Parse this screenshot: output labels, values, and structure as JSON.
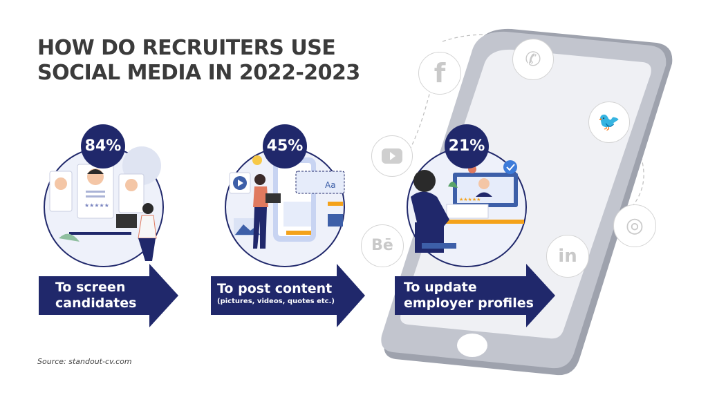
{
  "title": {
    "line1": "HOW DO RECRUITERS USE",
    "line2": "SOCIAL MEDIA IN 2022-2023"
  },
  "items": [
    {
      "percent": "84%",
      "value": 84,
      "label_line1": "To screen",
      "label_line2": "candidates",
      "sub": ""
    },
    {
      "percent": "45%",
      "value": 45,
      "label_line1": "To post content",
      "label_line2": "",
      "sub": "(pictures, videos, quotes etc.)"
    },
    {
      "percent": "21%",
      "value": 21,
      "label_line1": "To update",
      "label_line2": "employer profiles",
      "sub": ""
    }
  ],
  "social_icons": [
    "facebook-icon",
    "whatsapp-icon",
    "twitter-icon",
    "youtube-icon",
    "behance-icon",
    "linkedin-icon",
    "instagram-icon"
  ],
  "social_glyphs": {
    "facebook": "f",
    "behance": "Bē",
    "linkedin": "in",
    "twitter": "🐦",
    "whatsapp": "✆",
    "instagram": "◎"
  },
  "illustration_text": {
    "font_sample": "Aa",
    "stars": "★★★★★"
  },
  "source": "Source: standout-cv.com",
  "colors": {
    "navy": "#20286b",
    "title": "#3b3b3b",
    "phone": "#b9bcc6",
    "screen": "#eeeff3",
    "social_gray": "#cfcfcf"
  }
}
